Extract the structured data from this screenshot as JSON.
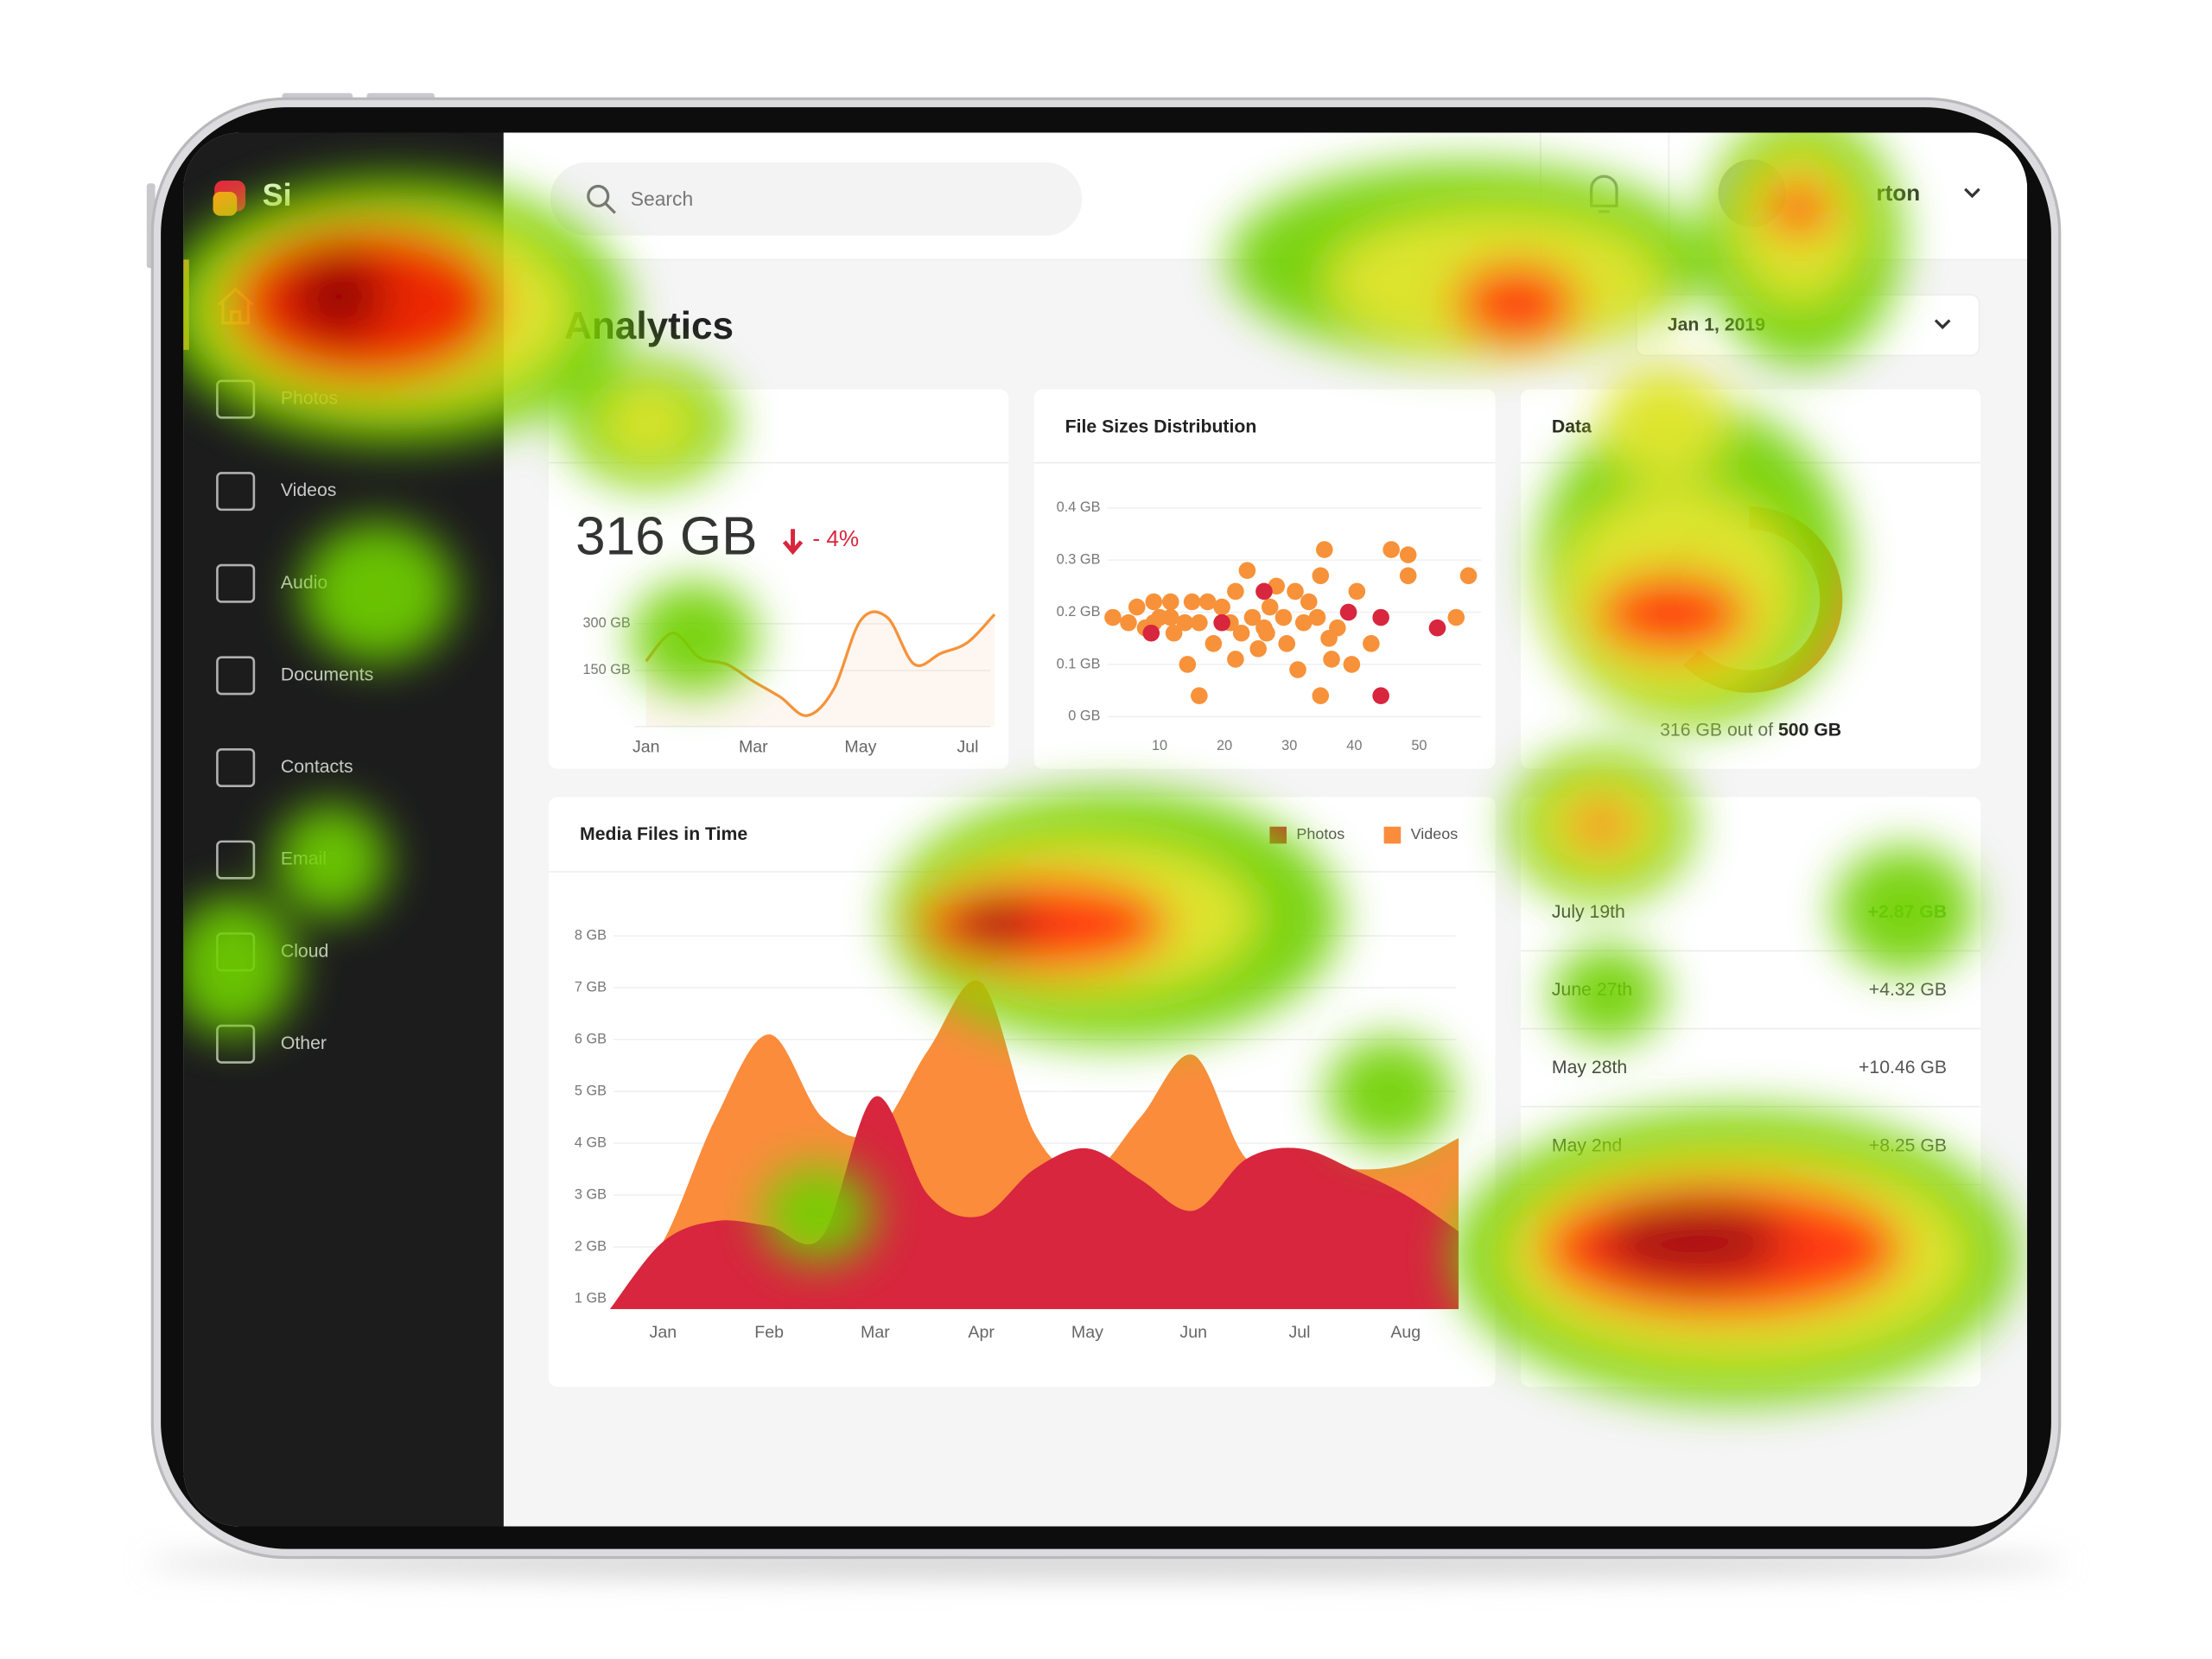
{
  "sidebar": {
    "brand": "Si",
    "items": [
      "Photos",
      "Videos",
      "Audio",
      "Documents",
      "Contacts",
      "Email",
      "Cloud",
      "Other"
    ]
  },
  "header": {
    "search": "Search",
    "user": "rton"
  },
  "page": {
    "title": "Analytics",
    "date": "Jan 1, 2019"
  },
  "chart_data": [
    {
      "type": "line",
      "value": "316 GB",
      "change": "- 4%",
      "categories": [
        "Jan",
        null,
        null,
        null,
        "Mar",
        null,
        null,
        null,
        "May",
        null,
        null,
        null,
        "Jul",
        null
      ],
      "values": [
        180,
        270,
        190,
        170,
        115,
        65,
        5,
        90,
        310,
        320,
        170,
        205,
        240,
        330
      ],
      "color": "#f7923a",
      "ylim": [
        -30,
        400
      ],
      "yticks": [
        {
          "value": 150,
          "label": "150 GB"
        },
        {
          "value": 300,
          "label": "300 GB"
        }
      ],
      "grid": true
    },
    {
      "type": "scatter",
      "title": "File Sizes Distribution",
      "series": [
        {
          "color": "#f7923a",
          "x": [
            2.8,
            5.2,
            6.5,
            7.8,
            9.1,
            10,
            11.7,
            12.2,
            13.9,
            15,
            16.1,
            17.4,
            14.3,
            16.1,
            18.3,
            19.6,
            20.9,
            21.7,
            22.6,
            23.5,
            24.3,
            25.2,
            26.1,
            27,
            28,
            29.1,
            29.6,
            30.9,
            31.3,
            32.2,
            33,
            34.3,
            34.8,
            35.4,
            36.1,
            36.5,
            37.4,
            34.8,
            39.6,
            40.4,
            42.6,
            45.7,
            48.3,
            48.3,
            55.7,
            57.6,
            21.7,
            26.5,
            11.7,
            9.1
          ],
          "values": [
            0.19,
            0.18,
            0.21,
            0.17,
            0.22,
            0.19,
            0.22,
            0.16,
            0.18,
            0.22,
            0.18,
            0.22,
            0.1,
            0.04,
            0.14,
            0.21,
            0.18,
            0.24,
            0.16,
            0.28,
            0.19,
            0.13,
            0.17,
            0.21,
            0.25,
            0.19,
            0.14,
            0.24,
            0.09,
            0.18,
            0.22,
            0.19,
            0.27,
            0.32,
            0.15,
            0.11,
            0.17,
            0.04,
            0.1,
            0.24,
            0.14,
            0.32,
            0.31,
            0.27,
            0.19,
            0.27,
            0.11,
            0.16,
            0.19,
            0.18
          ]
        },
        {
          "color": "#d7263d",
          "x": [
            8.7,
            19.6,
            26.1,
            39.1,
            44.1,
            44.1,
            52.8
          ],
          "values": [
            0.16,
            0.18,
            0.24,
            0.2,
            0.19,
            0.04,
            0.17
          ]
        }
      ],
      "xlim": [
        0,
        60
      ],
      "ylim": [
        0,
        0.4
      ],
      "xticks": [
        10,
        20,
        30,
        40,
        50
      ],
      "yticks": [
        {
          "value": 0,
          "label": "0 GB"
        },
        {
          "value": 0.1,
          "label": "0.1 GB"
        },
        {
          "value": 0.2,
          "label": "0.2 GB"
        },
        {
          "value": 0.3,
          "label": "0.3 GB"
        },
        {
          "value": 0.4,
          "label": "0.4 GB"
        }
      ],
      "grid": true
    },
    {
      "type": "area",
      "title": "Media Files in Time",
      "categories": [
        null,
        "Jan",
        null,
        "Feb",
        null,
        "Mar",
        null,
        "Apr",
        null,
        "May",
        null,
        "Jun",
        null,
        "Jul",
        null,
        "Aug",
        null
      ],
      "series": [
        {
          "name": "Photos",
          "color": "#d7263d",
          "values": [
            0.8,
            2.1,
            2.5,
            2.4,
            2.2,
            4.9,
            3.0,
            2.6,
            3.5,
            3.9,
            3.3,
            2.7,
            3.7,
            3.9,
            3.5,
            3.0,
            2.3
          ]
        },
        {
          "name": "Videos",
          "color": "#fb8c3c",
          "values": [
            0.8,
            2.1,
            4.5,
            6.1,
            4.5,
            4.2,
            5.8,
            7.1,
            4.2,
            3.4,
            4.5,
            5.7,
            3.7,
            3.7,
            3.5,
            3.6,
            4.1
          ]
        }
      ],
      "ylim": [
        0.8,
        8.5
      ],
      "yticks": [
        {
          "value": 1,
          "label": "1 GB"
        },
        {
          "value": 2,
          "label": "2 GB"
        },
        {
          "value": 3,
          "label": "3 GB"
        },
        {
          "value": 4,
          "label": "4 GB"
        },
        {
          "value": 5,
          "label": "5 GB"
        },
        {
          "value": 6,
          "label": "6 GB"
        },
        {
          "value": 7,
          "label": "7 GB"
        },
        {
          "value": 8,
          "label": "8 GB"
        }
      ],
      "grid": true
    }
  ],
  "storage": {
    "title": "Data",
    "used": "316 GB",
    "middle": "out of",
    "total": "500 GB"
  },
  "table": {
    "rows": [
      [
        "July 19th",
        "+2.87 GB"
      ],
      [
        "June 27th",
        "+4.32 GB"
      ],
      [
        "May 28th",
        "+10.46 GB"
      ],
      [
        "May 2nd",
        "+8.25 GB"
      ]
    ]
  }
}
